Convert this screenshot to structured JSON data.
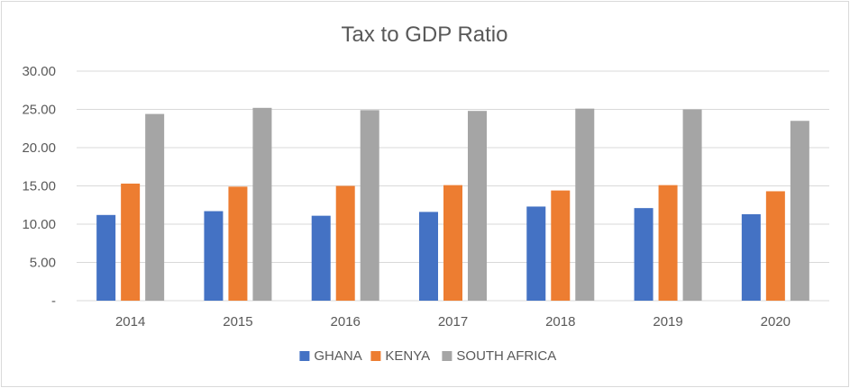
{
  "chart_data": {
    "type": "bar",
    "title": "Tax to GDP Ratio",
    "xlabel": "",
    "ylabel": "",
    "ylim": [
      0,
      30
    ],
    "yticks": [
      "-",
      "5.00",
      "10.00",
      "15.00",
      "20.00",
      "25.00",
      "30.00"
    ],
    "categories": [
      "2014",
      "2015",
      "2016",
      "2017",
      "2018",
      "2019",
      "2020"
    ],
    "series": [
      {
        "name": "GHANA",
        "color": "#4472c4",
        "values": [
          11.2,
          11.7,
          11.1,
          11.6,
          12.3,
          12.1,
          11.3
        ]
      },
      {
        "name": "KENYA",
        "color": "#ed7d31",
        "values": [
          15.3,
          14.9,
          15.0,
          15.1,
          14.4,
          15.1,
          14.3
        ]
      },
      {
        "name": "SOUTH AFRICA",
        "color": "#a5a5a5",
        "values": [
          24.4,
          25.2,
          24.9,
          24.8,
          25.1,
          25.0,
          23.5
        ]
      }
    ],
    "grid": true,
    "legend": "bottom"
  }
}
